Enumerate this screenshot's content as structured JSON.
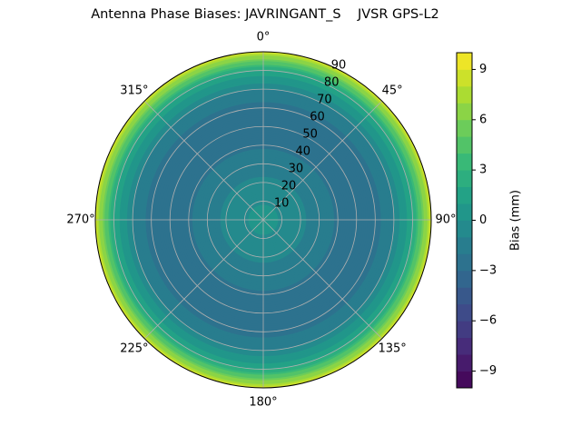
{
  "chart_data": {
    "type": "heatmap",
    "subtype": "polar-contour",
    "title": "Antenna Phase Biases: JAVRINGANT_S    JVSR GPS-L2",
    "angle_ticks": [
      {
        "deg": 0,
        "label": "0°"
      },
      {
        "deg": 45,
        "label": "45°"
      },
      {
        "deg": 90,
        "label": "90°"
      },
      {
        "deg": 135,
        "label": "135°"
      },
      {
        "deg": 180,
        "label": "180°"
      },
      {
        "deg": 225,
        "label": "225°"
      },
      {
        "deg": 270,
        "label": "270°"
      },
      {
        "deg": 315,
        "label": "315°"
      }
    ],
    "radial_ticks": [
      10,
      20,
      30,
      40,
      50,
      60,
      70,
      80,
      90
    ],
    "radial_range": [
      0,
      90
    ],
    "azimuth_direction": "clockwise",
    "zero_location": "top",
    "grid": true,
    "colorbar": {
      "label": "Bias (mm)",
      "range": [
        -10,
        10
      ],
      "ticks": [
        -9,
        -6,
        -3,
        0,
        3,
        6,
        9
      ],
      "tick_labels": [
        "−9",
        "−6",
        "−3",
        "0",
        "3",
        "6",
        "9"
      ],
      "levels": 20,
      "colormap": "viridis"
    },
    "approx_bias_by_zenith": [
      {
        "zenith": 0,
        "bias": 0.5
      },
      {
        "zenith": 15,
        "bias": -0.5
      },
      {
        "zenith": 30,
        "bias": -1.5
      },
      {
        "zenith": 45,
        "bias": -2.5
      },
      {
        "zenith": 60,
        "bias": -2.5
      },
      {
        "zenith": 70,
        "bias": -1.0
      },
      {
        "zenith": 80,
        "bias": 2.0
      },
      {
        "zenith": 85,
        "bias": 5.0
      },
      {
        "zenith": 90,
        "bias": 8.5
      }
    ]
  }
}
